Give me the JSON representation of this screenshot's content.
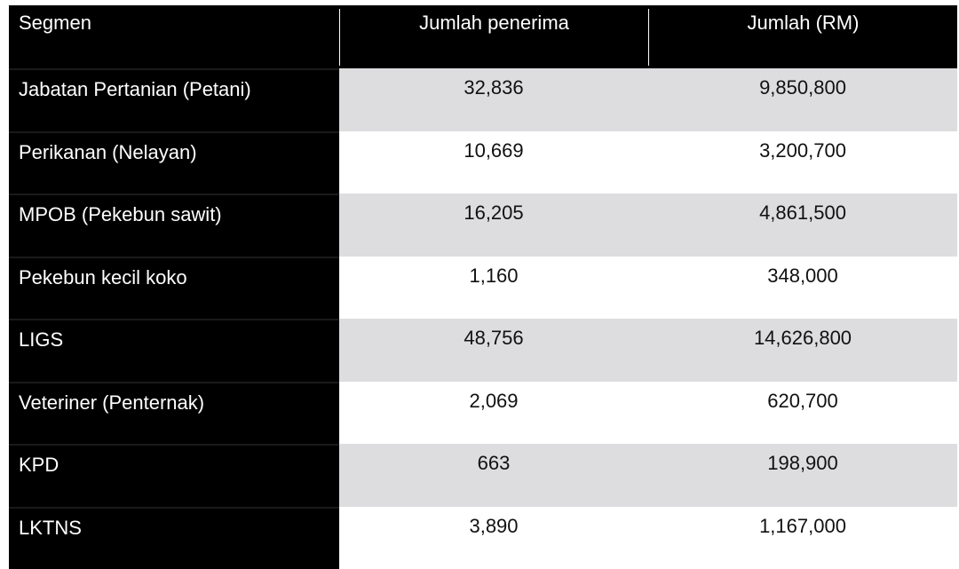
{
  "table": {
    "headers": {
      "segment": "Segmen",
      "recipients": "Jumlah penerima",
      "amount": "Jumlah (RM)"
    },
    "rows": [
      {
        "segment": "Jabatan Pertanian (Petani)",
        "recipients": "32,836",
        "amount": "9,850,800"
      },
      {
        "segment": "Perikanan (Nelayan)",
        "recipients": "10,669",
        "amount": "3,200,700"
      },
      {
        "segment": "MPOB (Pekebun sawit)",
        "recipients": "16,205",
        "amount": "4,861,500"
      },
      {
        "segment": "Pekebun kecil koko",
        "recipients": "1,160",
        "amount": "348,000"
      },
      {
        "segment": "LIGS",
        "recipients": "48,756",
        "amount": "14,626,800"
      },
      {
        "segment": "Veteriner (Penternak)",
        "recipients": "2,069",
        "amount": "620,700"
      },
      {
        "segment": "KPD",
        "recipients": "663",
        "amount": "198,900"
      },
      {
        "segment": "LKTNS",
        "recipients": "3,890",
        "amount": "1,167,000"
      }
    ]
  },
  "colors": {
    "header_bg": "#000000",
    "header_text": "#ffffff",
    "shaded_row": "#dddcde",
    "plain_row": "#ffffff"
  }
}
